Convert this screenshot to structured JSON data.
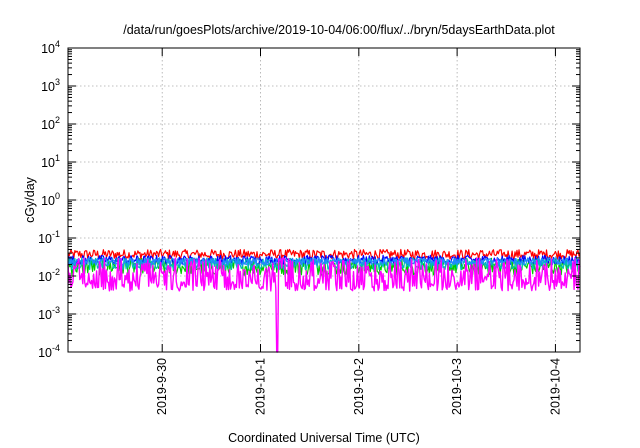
{
  "chart_data": {
    "type": "area",
    "title": "/data/run/goesPlots/archive/2019-10-04/06:00/flux/../bryn/5daysEarthData.plot",
    "xlabel": "Coordinated Universal Time (UTC)",
    "ylabel": "cGy/day",
    "y_scale": "log",
    "ylim": [
      0.0001,
      10000
    ],
    "xlim": [
      "2019-09-29T01:00",
      "2019-10-04T06:00"
    ],
    "grid": true,
    "legend": "none",
    "y_ticks": [
      {
        "base": "10",
        "exp": "-4"
      },
      {
        "base": "10",
        "exp": "-3"
      },
      {
        "base": "10",
        "exp": "-2"
      },
      {
        "base": "10",
        "exp": "-1"
      },
      {
        "base": "10",
        "exp": "0"
      },
      {
        "base": "10",
        "exp": "1"
      },
      {
        "base": "10",
        "exp": "2"
      },
      {
        "base": "10",
        "exp": "3"
      },
      {
        "base": "10",
        "exp": "4"
      }
    ],
    "x_ticks": [
      {
        "label": "2019-9-30",
        "date": "2019-09-30T00:00"
      },
      {
        "label": "2019-10-1",
        "date": "2019-10-01T00:00"
      },
      {
        "label": "2019-10-2",
        "date": "2019-10-02T00:00"
      },
      {
        "label": "2019-10-3",
        "date": "2019-10-03T00:00"
      },
      {
        "label": "2019-10-4",
        "date": "2019-10-04T00:00"
      }
    ],
    "series": [
      {
        "color": "#ff0000",
        "typical_range": [
          0.02,
          0.05
        ]
      },
      {
        "color": "#00cc00",
        "typical_range": [
          0.006,
          0.03
        ]
      },
      {
        "color": "#0000ff",
        "typical_range": [
          0.015,
          0.035
        ]
      },
      {
        "color": "#00bbbb",
        "typical_range": [
          0.01,
          0.03
        ]
      },
      {
        "color": "#2288ff",
        "typical_range": [
          0.015,
          0.03
        ]
      },
      {
        "color": "#ff00ff",
        "typical_range": [
          0.004,
          0.03
        ],
        "dip": {
          "date": "2019-10-01T04:00",
          "value": 0.0001
        }
      }
    ]
  }
}
